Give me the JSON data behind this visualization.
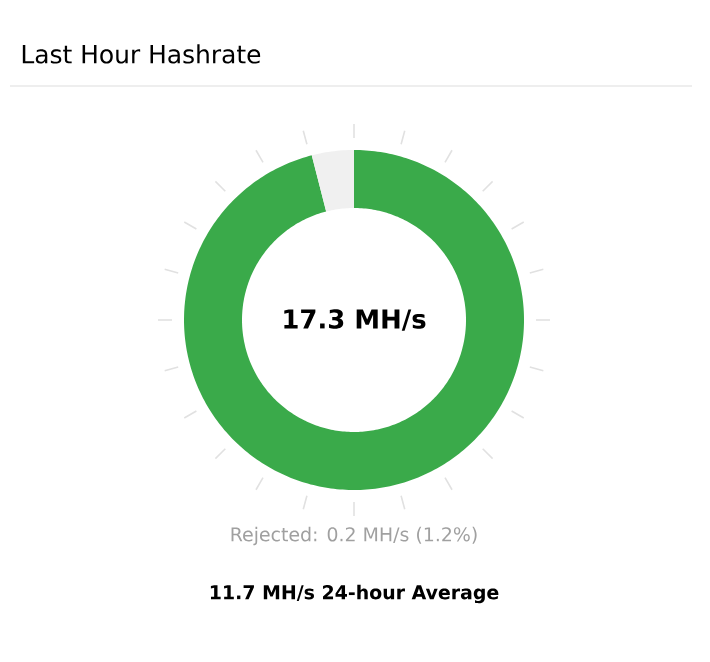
{
  "chart_data": {
    "type": "donut",
    "title": "Last Hour Hashrate",
    "categories": [
      null,
      null
    ],
    "values": [
      96,
      4
    ],
    "colors": [
      "#3aaa4a",
      "#f0f0f0"
    ],
    "annotations": [
      "17.3 MH/s",
      "Rejected: 0.2 MH/s (1.2%)",
      "11.7 MH/s 24-hour Average"
    ]
  }
}
